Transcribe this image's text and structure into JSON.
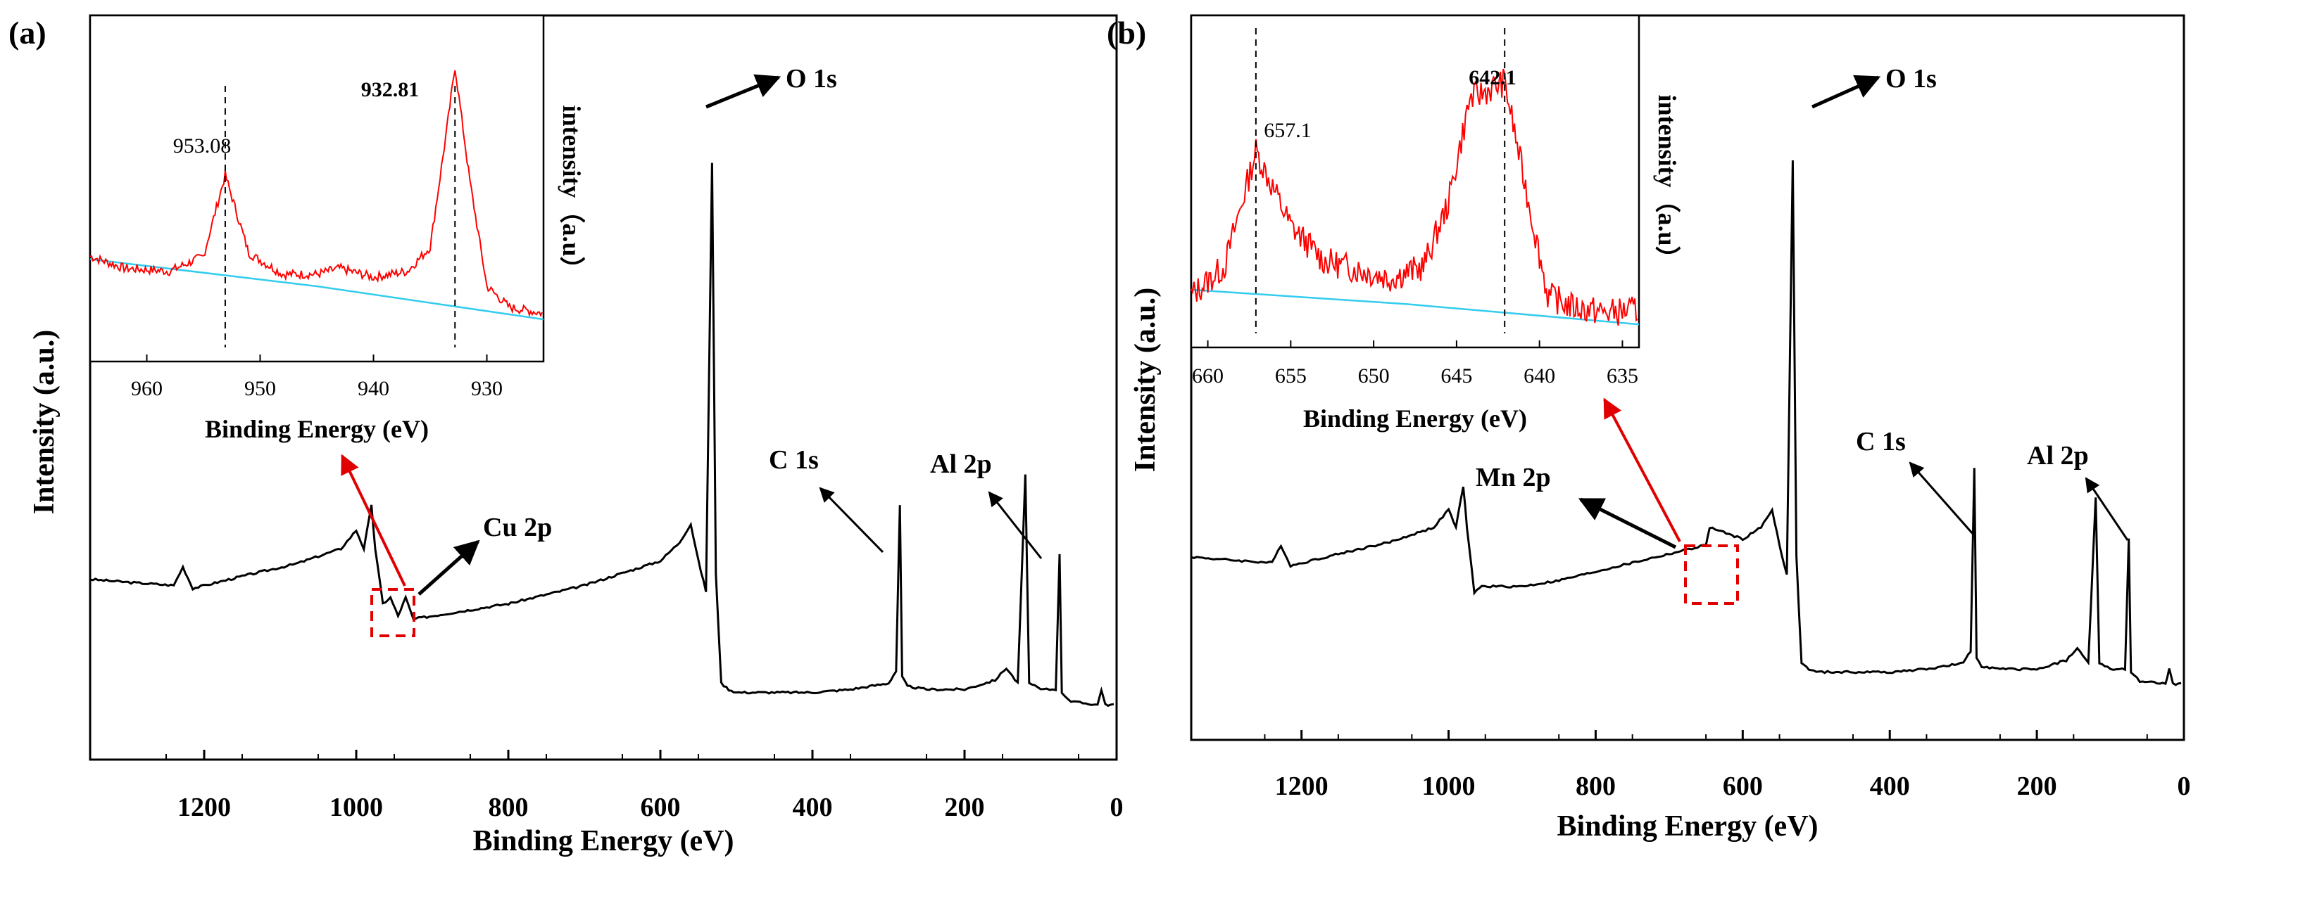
{
  "figure": {
    "panels": [
      {
        "label": "(a)",
        "xlabel": "Binding Energy (eV)",
        "ylabel": "Intensity (a.u.)",
        "xticks": [
          "1200",
          "1000",
          "800",
          "600",
          "400",
          "200",
          "0"
        ],
        "annotations": [
          "O 1s",
          "C 1s",
          "Al 2p",
          "Cu 2p"
        ],
        "inset": {
          "xlabel": "Binding Energy (eV)",
          "ylabel": "intensity（a.u）",
          "xticks": [
            "960",
            "950",
            "940",
            "930"
          ],
          "peak_labels": [
            "953.08",
            "932.81"
          ]
        }
      },
      {
        "label": "(b)",
        "xlabel": "Binding Energy (eV)",
        "ylabel": "Intensity (a.u.)",
        "xticks": [
          "1200",
          "1000",
          "800",
          "600",
          "400",
          "200",
          "0"
        ],
        "annotations": [
          "O 1s",
          "C 1s",
          "Al 2p",
          "Mn 2p"
        ],
        "inset": {
          "xlabel": "Binding Energy (eV)",
          "ylabel": "intensity（a.u）",
          "xticks": [
            "660",
            "655",
            "650",
            "645",
            "640",
            "635"
          ],
          "peak_labels": [
            "657.1",
            "642.1"
          ]
        }
      }
    ]
  },
  "chart_data": [
    {
      "type": "line",
      "title": "(a)",
      "xlabel": "Binding Energy (eV)",
      "ylabel": "Intensity (a.u.)",
      "xlim": [
        1350,
        0
      ],
      "ylim": [
        0,
        100
      ],
      "series": [
        {
          "name": "survey",
          "color": "#000000",
          "x": [
            1350,
            1300,
            1240,
            1228,
            1215,
            1150,
            1080,
            1020,
            1000,
            990,
            980,
            975,
            965,
            955,
            945,
            935,
            925,
            900,
            850,
            800,
            750,
            700,
            650,
            600,
            575,
            560,
            550,
            540,
            532,
            527,
            520,
            510,
            500,
            450,
            400,
            350,
            300,
            290,
            285,
            282,
            275,
            250,
            200,
            160,
            145,
            130,
            120,
            115,
            100,
            80,
            75,
            72,
            60,
            25,
            20,
            15,
            0
          ],
          "y": [
            22,
            21.5,
            21,
            24,
            20.5,
            22.5,
            24.5,
            27,
            30,
            27,
            34,
            27,
            18,
            19,
            16,
            19,
            15.5,
            16,
            17,
            18,
            19.5,
            21,
            23,
            25,
            28,
            31,
            25,
            20,
            90,
            23,
            5,
            4,
            3.5,
            3.5,
            3.5,
            4,
            5,
            7,
            34,
            6,
            4.5,
            4,
            4,
            5.5,
            7.5,
            5,
            39,
            5,
            4,
            4,
            26,
            3.5,
            2,
            1.5,
            4,
            1.5,
            1.5
          ]
        }
      ],
      "annotations": [
        {
          "text": "O 1s",
          "x": 532
        },
        {
          "text": "C 1s",
          "x": 285
        },
        {
          "text": "Al 2p",
          "x": 75
        },
        {
          "text": "Cu 2p",
          "x": 935
        }
      ],
      "inset": {
        "type": "line",
        "xlim": [
          965,
          925
        ],
        "xlabel": "Binding Energy (eV)",
        "ylabel": "intensity（a.u）",
        "series": [
          {
            "name": "Cu 2p",
            "color": "#ff0000",
            "x": [
              965,
              962,
              958,
              955,
              953.08,
              951,
              948,
              945,
              943,
              940,
              937,
              935,
              933.5,
              932.81,
              931.5,
              930,
              928,
              925
            ],
            "y": [
              35,
              31,
              30,
              35,
              62,
              36,
              29,
              29,
              31,
              28,
              30,
              38,
              78,
              98,
              60,
              25,
              18,
              16
            ]
          },
          {
            "name": "background",
            "color": "#33ccee",
            "x": [
              965,
              945,
              925
            ],
            "y": [
              34,
              25,
              14
            ]
          }
        ],
        "peaks": [
          953.08,
          932.81
        ]
      }
    },
    {
      "type": "line",
      "title": "(b)",
      "xlabel": "Binding Energy (eV)",
      "ylabel": "Intensity (a.u.)",
      "xlim": [
        1350,
        0
      ],
      "ylim": [
        0,
        100
      ],
      "series": [
        {
          "name": "survey",
          "color": "#000000",
          "x": [
            1350,
            1300,
            1240,
            1228,
            1215,
            1150,
            1080,
            1020,
            1000,
            990,
            980,
            975,
            965,
            955,
            900,
            850,
            800,
            750,
            700,
            650,
            645,
            600,
            575,
            560,
            550,
            540,
            532,
            527,
            520,
            510,
            500,
            450,
            400,
            350,
            300,
            290,
            285,
            282,
            275,
            250,
            200,
            160,
            145,
            130,
            120,
            115,
            100,
            80,
            75,
            72,
            60,
            25,
            20,
            15,
            0
          ],
          "y": [
            23,
            22.5,
            22,
            25,
            21.5,
            23.5,
            25.5,
            28,
            31,
            28,
            35,
            28,
            17,
            18,
            18,
            19,
            20.5,
            22,
            23.5,
            25,
            28,
            26,
            28,
            31,
            25,
            20,
            90,
            23,
            5,
            4,
            3.5,
            3.5,
            3.5,
            4,
            5,
            7,
            38,
            6,
            4.5,
            4,
            4,
            5.5,
            7.5,
            5,
            33,
            5,
            4,
            4,
            26,
            3.5,
            2,
            1.5,
            4,
            1.5,
            1.5
          ]
        }
      ],
      "annotations": [
        {
          "text": "O 1s",
          "x": 532
        },
        {
          "text": "C 1s",
          "x": 285
        },
        {
          "text": "Al 2p",
          "x": 75
        },
        {
          "text": "Mn 2p",
          "x": 650
        }
      ],
      "inset": {
        "type": "line",
        "xlim": [
          661,
          634
        ],
        "xlabel": "Binding Energy (eV)",
        "ylabel": "intensity（a.u）",
        "series": [
          {
            "name": "Mn 2p",
            "color": "#ff0000",
            "x": [
              661,
              659,
              657.1,
              655,
              653,
              651,
              649,
              647,
              645.5,
              644.2,
              642.1,
              641,
              639.5,
              638,
              636,
              634
            ],
            "y": [
              18,
              28,
              68,
              42,
              30,
              27,
              24,
              28,
              50,
              86,
              92,
              60,
              18,
              14,
              12,
              13
            ]
          },
          {
            "name": "background",
            "color": "#33ccee",
            "x": [
              661,
              648,
              634
            ],
            "y": [
              20,
              15,
              8
            ]
          }
        ],
        "peaks": [
          657.1,
          642.1
        ]
      }
    }
  ]
}
